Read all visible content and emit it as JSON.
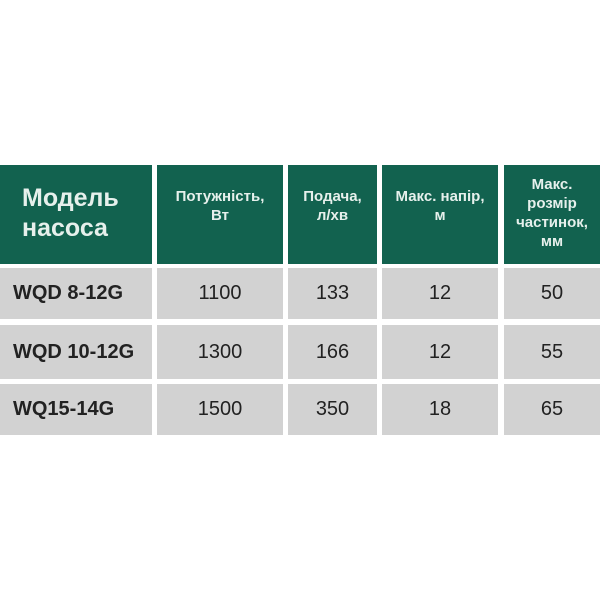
{
  "table": {
    "headers": [
      "Модель насоса",
      "Потужність, Вт",
      "Подача, л/хв",
      "Макс. напір, м",
      "Макс. розмір частинок, мм"
    ],
    "rows": [
      [
        "WQD 8-12G",
        "1100",
        "133",
        "12",
        "50"
      ],
      [
        "WQD 10-12G",
        "1300",
        "166",
        "12",
        "55"
      ],
      [
        "WQ15-14G",
        "1500",
        "350",
        "18",
        "65"
      ]
    ],
    "colors": {
      "header_bg": "#12624f",
      "header_text": "#e6f0ec",
      "cell_bg": "#d2d2d2",
      "cell_text": "#222222"
    }
  }
}
